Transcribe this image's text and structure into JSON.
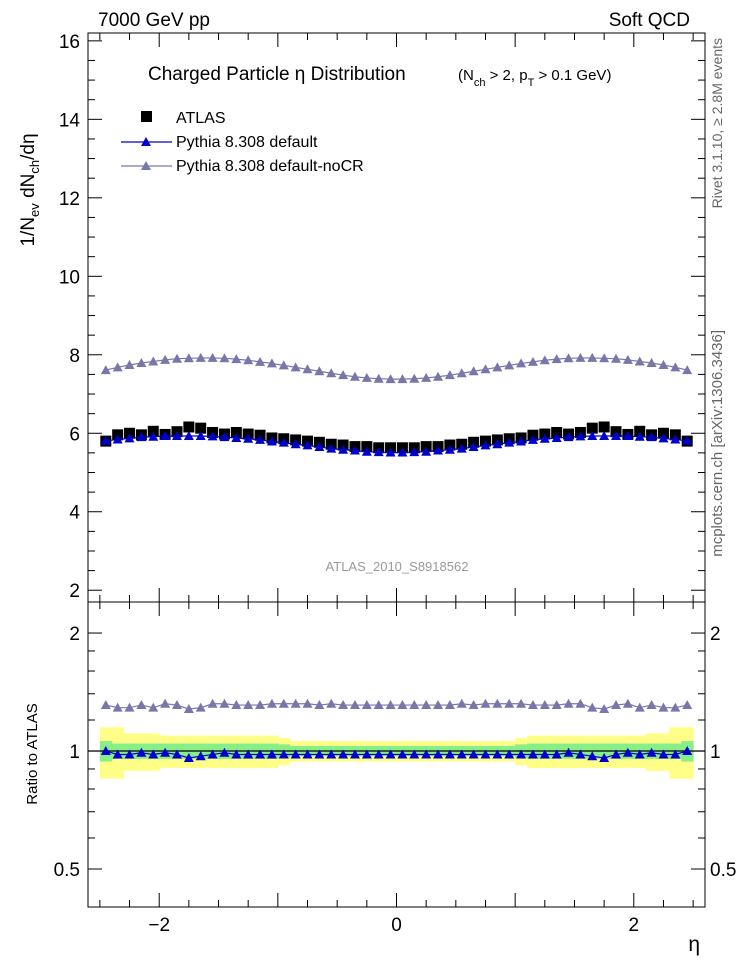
{
  "header": {
    "left": "7000 GeV pp",
    "right": "Soft QCD"
  },
  "side_text": {
    "rivet": "Rivet 3.1.10, ≥ 2.8M events",
    "mcplots": "mcplots.cern.ch [arXiv:1306.3436]"
  },
  "chart_data": [
    {
      "type": "scatter",
      "title": "Charged Particle  η Distribution",
      "title_suffix": "(N_ch > 2, p_T > 0.1 GeV)",
      "xlabel": "η",
      "ylabel": "1/N_ev dN_ch/dη",
      "xlim": [
        -2.6,
        2.6
      ],
      "ylim": [
        1.7,
        16.2
      ],
      "yticks": [
        2,
        4,
        6,
        8,
        10,
        12,
        14,
        16
      ],
      "ytick_labels": [
        "2",
        "4",
        "6",
        "8",
        "10",
        "12",
        "14",
        "16"
      ],
      "watermark": "ATLAS_2010_S8918562",
      "legend_position": "top-left",
      "x": [
        -2.45,
        -2.35,
        -2.25,
        -2.15,
        -2.05,
        -1.95,
        -1.85,
        -1.75,
        -1.65,
        -1.55,
        -1.45,
        -1.35,
        -1.25,
        -1.15,
        -1.05,
        -0.95,
        -0.85,
        -0.75,
        -0.65,
        -0.55,
        -0.45,
        -0.35,
        -0.25,
        -0.15,
        -0.05,
        0.05,
        0.15,
        0.25,
        0.35,
        0.45,
        0.55,
        0.65,
        0.75,
        0.85,
        0.95,
        1.05,
        1.15,
        1.25,
        1.35,
        1.45,
        1.55,
        1.65,
        1.75,
        1.85,
        1.95,
        2.05,
        2.15,
        2.25,
        2.35,
        2.45
      ],
      "series": [
        {
          "name": "ATLAS",
          "color": "#000000",
          "marker": "square",
          "values": [
            5.8,
            5.96,
            6.0,
            5.96,
            6.05,
            5.97,
            6.04,
            6.16,
            6.13,
            6.02,
            5.98,
            6.02,
            5.98,
            5.95,
            5.88,
            5.86,
            5.83,
            5.8,
            5.77,
            5.72,
            5.7,
            5.66,
            5.66,
            5.63,
            5.63,
            5.63,
            5.63,
            5.66,
            5.66,
            5.7,
            5.72,
            5.77,
            5.8,
            5.83,
            5.86,
            5.88,
            5.95,
            5.98,
            6.02,
            5.98,
            6.02,
            6.13,
            6.16,
            6.04,
            5.97,
            6.05,
            5.96,
            6.0,
            5.96,
            5.8
          ]
        },
        {
          "name": "Pythia 8.308 default",
          "color": "#0000cc",
          "marker": "triangle",
          "values": [
            5.81,
            5.84,
            5.87,
            5.9,
            5.91,
            5.93,
            5.93,
            5.93,
            5.93,
            5.92,
            5.9,
            5.88,
            5.86,
            5.83,
            5.79,
            5.76,
            5.72,
            5.69,
            5.65,
            5.61,
            5.58,
            5.56,
            5.53,
            5.52,
            5.51,
            5.51,
            5.52,
            5.53,
            5.56,
            5.58,
            5.61,
            5.65,
            5.69,
            5.72,
            5.76,
            5.79,
            5.83,
            5.86,
            5.88,
            5.9,
            5.92,
            5.93,
            5.93,
            5.93,
            5.93,
            5.91,
            5.9,
            5.87,
            5.84,
            5.81
          ]
        },
        {
          "name": "Pythia 8.308 default-noCR",
          "color": "#7777aa",
          "marker": "triangle",
          "values": [
            7.61,
            7.68,
            7.74,
            7.79,
            7.83,
            7.87,
            7.9,
            7.91,
            7.92,
            7.92,
            7.91,
            7.89,
            7.86,
            7.82,
            7.78,
            7.73,
            7.68,
            7.63,
            7.58,
            7.53,
            7.48,
            7.44,
            7.41,
            7.39,
            7.38,
            7.38,
            7.39,
            7.41,
            7.44,
            7.48,
            7.53,
            7.58,
            7.63,
            7.68,
            7.73,
            7.78,
            7.82,
            7.86,
            7.89,
            7.91,
            7.92,
            7.92,
            7.91,
            7.9,
            7.87,
            7.83,
            7.79,
            7.74,
            7.68,
            7.61
          ]
        }
      ]
    },
    {
      "type": "scatter",
      "ylabel": "Ratio to ATLAS",
      "xlabel": "η",
      "xlim": [
        -2.6,
        2.6
      ],
      "ylim": [
        0.4,
        2.4
      ],
      "log_y": true,
      "yticks": [
        0.5,
        1,
        2
      ],
      "ytick_labels": [
        "0.5",
        "1",
        "2"
      ],
      "xticks": [
        -2,
        0,
        2
      ],
      "xtick_labels": [
        "−2",
        "0",
        "2"
      ],
      "bands": {
        "inner_color": "#88ee88",
        "outer_color": "#ffff88",
        "inner_halfwidth": [
          0.06,
          0.045,
          0.045,
          0.045,
          0.045,
          0.045,
          0.045,
          0.045,
          0.045,
          0.045,
          0.045,
          0.045,
          0.045,
          0.045,
          0.045,
          0.04,
          0.03,
          0.03,
          0.03,
          0.03,
          0.03,
          0.03,
          0.03,
          0.03,
          0.03,
          0.03,
          0.03,
          0.03,
          0.03,
          0.03,
          0.03,
          0.03,
          0.03,
          0.03,
          0.03,
          0.04,
          0.045,
          0.045,
          0.045,
          0.045,
          0.045,
          0.045,
          0.045,
          0.045,
          0.045,
          0.045,
          0.045,
          0.045,
          0.045,
          0.06
        ],
        "outer_halfwidth": [
          0.15,
          0.15,
          0.11,
          0.11,
          0.11,
          0.095,
          0.095,
          0.095,
          0.095,
          0.095,
          0.095,
          0.095,
          0.095,
          0.095,
          0.095,
          0.08,
          0.06,
          0.06,
          0.06,
          0.06,
          0.06,
          0.06,
          0.06,
          0.06,
          0.06,
          0.06,
          0.06,
          0.06,
          0.06,
          0.06,
          0.06,
          0.06,
          0.06,
          0.06,
          0.06,
          0.08,
          0.095,
          0.095,
          0.095,
          0.095,
          0.095,
          0.095,
          0.095,
          0.095,
          0.095,
          0.095,
          0.11,
          0.11,
          0.15,
          0.15
        ]
      },
      "series": [
        {
          "name": "Pythia 8.308 default",
          "color": "#0000cc",
          "values": [
            1.0,
            0.98,
            0.98,
            0.99,
            0.98,
            0.99,
            0.98,
            0.96,
            0.97,
            0.98,
            0.99,
            0.98,
            0.98,
            0.98,
            0.98,
            0.98,
            0.98,
            0.98,
            0.98,
            0.98,
            0.98,
            0.98,
            0.98,
            0.98,
            0.98,
            0.98,
            0.98,
            0.98,
            0.98,
            0.98,
            0.98,
            0.98,
            0.98,
            0.98,
            0.98,
            0.98,
            0.98,
            0.98,
            0.98,
            0.99,
            0.98,
            0.97,
            0.96,
            0.98,
            0.99,
            0.98,
            0.99,
            0.98,
            0.98,
            1.0
          ]
        },
        {
          "name": "Pythia 8.308 default-noCR",
          "color": "#7777aa",
          "values": [
            1.31,
            1.29,
            1.29,
            1.31,
            1.29,
            1.32,
            1.31,
            1.28,
            1.29,
            1.32,
            1.32,
            1.31,
            1.31,
            1.31,
            1.32,
            1.32,
            1.32,
            1.32,
            1.31,
            1.32,
            1.31,
            1.31,
            1.31,
            1.31,
            1.31,
            1.31,
            1.31,
            1.31,
            1.31,
            1.31,
            1.32,
            1.31,
            1.32,
            1.32,
            1.32,
            1.32,
            1.31,
            1.31,
            1.31,
            1.32,
            1.32,
            1.29,
            1.28,
            1.31,
            1.32,
            1.29,
            1.31,
            1.29,
            1.29,
            1.31
          ]
        }
      ]
    }
  ]
}
